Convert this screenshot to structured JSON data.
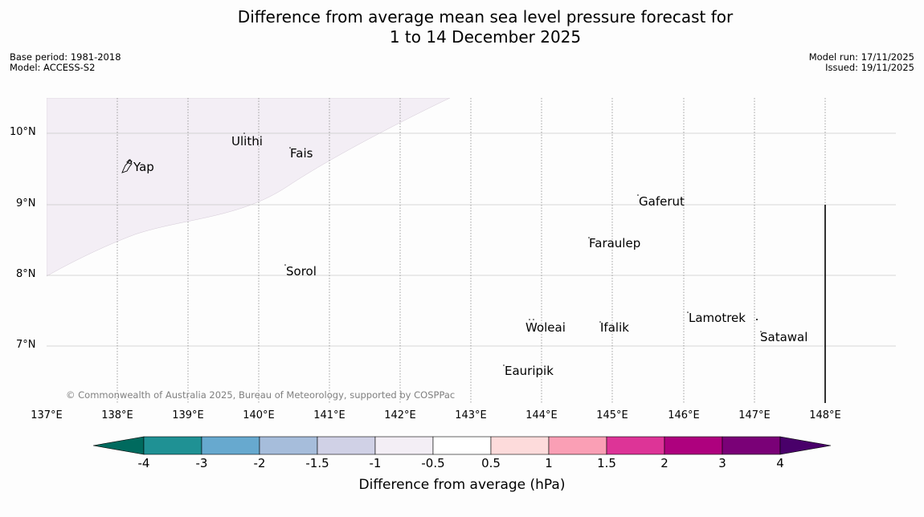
{
  "title": {
    "line1": "Difference from average mean sea level pressure forecast for",
    "line2": "1 to 14 December 2025"
  },
  "meta_left": {
    "base_period": "Base period: 1981-2018",
    "model": "Model: ACCESS-S2"
  },
  "meta_right": {
    "model_run": "Model run: 17/11/2025",
    "issued": "Issued: 19/11/2025"
  },
  "map": {
    "lat_labels": [
      "10°N",
      "9°N",
      "8°N",
      "7°N"
    ],
    "lon_labels": [
      "137°E",
      "138°E",
      "139°E",
      "140°E",
      "141°E",
      "142°E",
      "143°E",
      "144°E",
      "145°E",
      "146°E",
      "147°E",
      "148°E"
    ],
    "places": {
      "yap": "Yap",
      "ulithi": "Ulithi",
      "fais": "Fais",
      "gaferut": "Gaferut",
      "faraulep": "Faraulep",
      "sorol": "Sorol",
      "lamotrek": "Lamotrek",
      "woleai": "Woleai",
      "ifalik": "Ifalik",
      "satawal": "Satawal",
      "eauripik": "Eauripik"
    },
    "shaded_category": "-1 to -0.5 hPa",
    "copyright": "© Commonwealth of Australia 2025, Bureau of Meteorology, supported by COSPPac"
  },
  "legend": {
    "title": "Difference from average (hPa)",
    "tick_labels": [
      "-4",
      "-3",
      "-2",
      "-1.5",
      "-1",
      "-0.5",
      "0.5",
      "1",
      "1.5",
      "2",
      "3",
      "4"
    ],
    "colors": [
      "#006a5e",
      "#1f9194",
      "#67a9cf",
      "#a6bddb",
      "#d0d1e6",
      "#f3eef5",
      "#ffffff",
      "#fddbdb",
      "#fa9fb5",
      "#dd3497",
      "#ae017e",
      "#7a0177",
      "#49006a"
    ]
  }
}
